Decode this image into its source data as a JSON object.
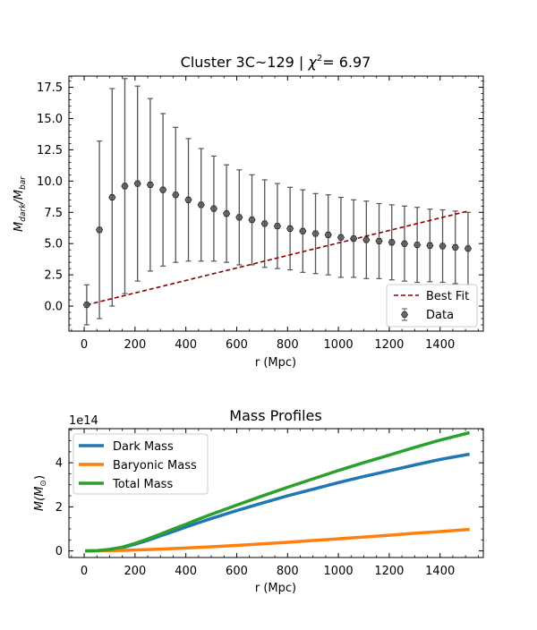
{
  "chart_data": [
    {
      "type": "scatter",
      "title_prefix": "Cluster 3C~129 | ",
      "title_chi": "χ",
      "title_chi_sup": "2",
      "title_suffix": "= 6.97",
      "xlabel": "r (Mpc)",
      "ylabel_main": "M",
      "ylabel_sub1": "dark",
      "ylabel_slash": "/M",
      "ylabel_sub2": "bar",
      "xlim": [
        -60,
        1570
      ],
      "ylim": [
        -2.0,
        18.4
      ],
      "xticks": [
        0,
        200,
        400,
        600,
        800,
        1000,
        1200,
        1400
      ],
      "yticks": [
        0.0,
        2.5,
        5.0,
        7.5,
        10.0,
        12.5,
        15.0,
        17.5
      ],
      "ytick_labels": [
        "0.0",
        "2.5",
        "5.0",
        "7.5",
        "10.0",
        "12.5",
        "15.0",
        "17.5"
      ],
      "legend_position": "lower-right",
      "series": [
        {
          "name": "Data",
          "kind": "errorbar",
          "color": "#555555",
          "x": [
            10,
            60,
            110,
            160,
            210,
            260,
            310,
            360,
            410,
            460,
            510,
            560,
            610,
            660,
            710,
            760,
            810,
            860,
            910,
            960,
            1010,
            1060,
            1110,
            1160,
            1210,
            1260,
            1310,
            1360,
            1410,
            1460,
            1510
          ],
          "y": [
            0.1,
            6.1,
            8.7,
            9.6,
            9.8,
            9.7,
            9.3,
            8.9,
            8.5,
            8.1,
            7.8,
            7.4,
            7.1,
            6.9,
            6.6,
            6.4,
            6.2,
            6.0,
            5.8,
            5.7,
            5.5,
            5.4,
            5.3,
            5.2,
            5.1,
            5.0,
            4.9,
            4.85,
            4.8,
            4.7,
            4.6
          ],
          "yerr": [
            1.6,
            7.1,
            8.7,
            8.6,
            7.8,
            6.9,
            6.1,
            5.4,
            4.9,
            4.5,
            4.2,
            3.9,
            3.8,
            3.6,
            3.5,
            3.4,
            3.3,
            3.3,
            3.2,
            3.2,
            3.2,
            3.1,
            3.1,
            3.0,
            3.0,
            3.0,
            3.0,
            2.9,
            2.9,
            2.9,
            2.9
          ]
        },
        {
          "name": "Best Fit",
          "kind": "line",
          "style": "dashed",
          "color": "#8b0000",
          "x": [
            10,
            1510
          ],
          "y": [
            0.1,
            7.6
          ]
        }
      ]
    },
    {
      "type": "line",
      "title": "Mass Profiles",
      "xlabel": "r (Mpc)",
      "ylabel_main": "M(M",
      "ylabel_sub": "⊙",
      "ylabel_end": ")",
      "offset_text": "1e14",
      "xlim": [
        -60,
        1570
      ],
      "ylim": [
        -0.3,
        5.55
      ],
      "xticks": [
        0,
        200,
        400,
        600,
        800,
        1000,
        1200,
        1400
      ],
      "yticks": [
        0,
        2,
        4
      ],
      "legend_position": "upper-left",
      "series": [
        {
          "name": "Dark Mass",
          "color": "#1f77b4",
          "x": [
            10,
            50,
            100,
            150,
            200,
            250,
            300,
            350,
            400,
            450,
            500,
            600,
            700,
            800,
            900,
            1000,
            1100,
            1200,
            1300,
            1400,
            1510
          ],
          "y": [
            0.0,
            0.01,
            0.06,
            0.15,
            0.3,
            0.48,
            0.68,
            0.88,
            1.08,
            1.28,
            1.47,
            1.83,
            2.17,
            2.5,
            2.8,
            3.1,
            3.38,
            3.64,
            3.9,
            4.15,
            4.38
          ]
        },
        {
          "name": "Baryonic Mass",
          "color": "#ff7f0e",
          "x": [
            10,
            100,
            200,
            300,
            400,
            500,
            600,
            700,
            800,
            900,
            1000,
            1100,
            1200,
            1300,
            1400,
            1510
          ],
          "y": [
            0.0,
            0.01,
            0.04,
            0.08,
            0.13,
            0.19,
            0.25,
            0.32,
            0.39,
            0.47,
            0.55,
            0.63,
            0.71,
            0.8,
            0.88,
            0.97
          ]
        },
        {
          "name": "Total Mass",
          "color": "#2ca02c",
          "x": [
            10,
            50,
            100,
            150,
            200,
            250,
            300,
            350,
            400,
            450,
            500,
            600,
            700,
            800,
            900,
            1000,
            1100,
            1200,
            1300,
            1400,
            1510
          ],
          "y": [
            0.0,
            0.01,
            0.07,
            0.17,
            0.34,
            0.54,
            0.76,
            0.99,
            1.21,
            1.44,
            1.66,
            2.08,
            2.49,
            2.89,
            3.27,
            3.65,
            4.01,
            4.35,
            4.7,
            5.03,
            5.35
          ]
        }
      ]
    }
  ]
}
